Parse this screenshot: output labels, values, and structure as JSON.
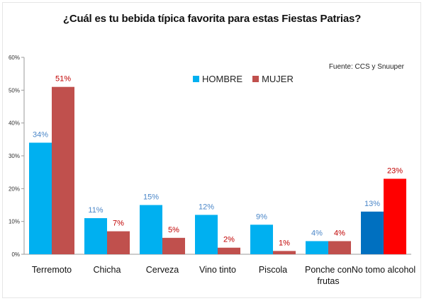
{
  "title": "¿Cuál es tu bebida típica favorita para estas Fiestas Patrias?",
  "source": "Fuente: CCS y Snuuper",
  "colors": {
    "hombre": "#00b0f0",
    "mujer": "#c0504d",
    "hombre_alt": "#0070c0",
    "mujer_alt": "#ff0000",
    "hombre_label": "#4a86c8",
    "mujer_label": "#c00000"
  },
  "chart_data": {
    "type": "bar",
    "title": "¿Cuál es tu bebida típica favorita para estas Fiestas Patrias?",
    "xlabel": "",
    "ylabel": "",
    "ylim": [
      0,
      60
    ],
    "yticks": [
      "0%",
      "10%",
      "20%",
      "30%",
      "40%",
      "50%",
      "60%"
    ],
    "grid": false,
    "legend_position": "top-right",
    "categories": [
      "Terremoto",
      "Chicha",
      "Cerveza",
      "Vino tinto",
      "Piscola",
      "Ponche con frutas",
      "No tomo alcohol"
    ],
    "category_lines": [
      [
        "Terremoto"
      ],
      [
        "Chicha"
      ],
      [
        "Cerveza"
      ],
      [
        "Vino tinto"
      ],
      [
        "Piscola"
      ],
      [
        "Ponche con",
        "frutas"
      ],
      [
        "No tomo alcohol"
      ]
    ],
    "series": [
      {
        "name": "HOMBRE",
        "values": [
          34,
          11,
          15,
          12,
          9,
          4,
          13
        ],
        "labels": [
          "34%",
          "11%",
          "15%",
          "12%",
          "9%",
          "4%",
          "13%"
        ]
      },
      {
        "name": "MUJER",
        "values": [
          51,
          7,
          5,
          2,
          1,
          4,
          23
        ],
        "labels": [
          "51%",
          "7%",
          "5%",
          "2%",
          "1%",
          "4%",
          "23%"
        ]
      }
    ]
  }
}
